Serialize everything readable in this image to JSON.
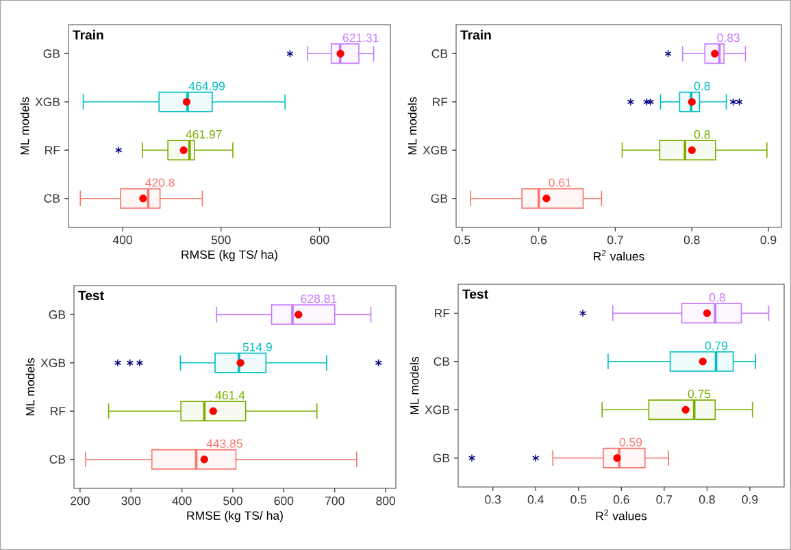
{
  "chart_data": [
    {
      "type": "box",
      "orientation": "horizontal",
      "title": "Train",
      "xlabel": "RMSE (kg TS/ ha)",
      "ylabel": "ML models",
      "categories": [
        "GB",
        "XGB",
        "RF",
        "CB"
      ],
      "colors": [
        "#c77cff",
        "#00bfc4",
        "#7cae00",
        "#f8766d"
      ],
      "boxes": [
        {
          "low": 588,
          "q1": 612,
          "median": 621,
          "q3": 640,
          "high": 655,
          "mean": 621.31,
          "outliers": [
            570
          ]
        },
        {
          "low": 360,
          "q1": 437,
          "median": 466,
          "q3": 491,
          "high": 565,
          "mean": 464.99
        },
        {
          "low": 420,
          "q1": 446,
          "median": 468,
          "q3": 473,
          "high": 512,
          "mean": 461.97,
          "outliers": [
            396
          ]
        },
        {
          "low": 357,
          "q1": 398,
          "median": 426,
          "q3": 438,
          "high": 481,
          "mean": 420.8
        }
      ],
      "annotations": [
        "621.31",
        "464.99",
        "461.97",
        "420.8"
      ],
      "xlim": [
        345,
        672
      ],
      "xticks": [
        400,
        500,
        600
      ]
    },
    {
      "type": "box",
      "orientation": "horizontal",
      "title": "Train",
      "xlabel": "R$^{2}$ values",
      "ylabel": "ML models",
      "categories": [
        "CB",
        "RF",
        "XGB",
        "GB"
      ],
      "colors": [
        "#c77cff",
        "#00bfc4",
        "#7cae00",
        "#f8766d"
      ],
      "boxes": [
        {
          "low": 0.788,
          "q1": 0.817,
          "median": 0.836,
          "q3": 0.842,
          "high": 0.87,
          "mean": 0.83,
          "outliers": [
            0.769
          ]
        },
        {
          "low": 0.759,
          "q1": 0.784,
          "median": 0.799,
          "q3": 0.81,
          "high": 0.845,
          "mean": 0.8,
          "outliers": [
            0.72,
            0.741,
            0.746,
            0.854,
            0.862
          ]
        },
        {
          "low": 0.709,
          "q1": 0.758,
          "median": 0.791,
          "q3": 0.831,
          "high": 0.898,
          "mean": 0.8
        },
        {
          "low": 0.511,
          "q1": 0.578,
          "median": 0.6,
          "q3": 0.658,
          "high": 0.682,
          "mean": 0.61
        }
      ],
      "annotations": [
        "0.83",
        "0.8",
        "0.8",
        "0.61"
      ],
      "xlim": [
        0.492,
        0.917
      ],
      "xticks": [
        0.5,
        0.6,
        0.7,
        0.8,
        0.9
      ]
    },
    {
      "type": "box",
      "orientation": "horizontal",
      "title": "Test",
      "xlabel": "RMSE (kg TS/ ha)",
      "ylabel": "ML models",
      "categories": [
        "GB",
        "XGB",
        "RF",
        "CB"
      ],
      "colors": [
        "#c77cff",
        "#00bfc4",
        "#7cae00",
        "#f8766d"
      ],
      "boxes": [
        {
          "low": 468,
          "q1": 576,
          "median": 617,
          "q3": 700,
          "high": 771,
          "mean": 628.81
        },
        {
          "low": 397,
          "q1": 465,
          "median": 512,
          "q3": 565,
          "high": 684,
          "mean": 514.9,
          "outliers": [
            274,
            298,
            317,
            786
          ]
        },
        {
          "low": 256,
          "q1": 398,
          "median": 444,
          "q3": 525,
          "high": 665,
          "mean": 461.4
        },
        {
          "low": 211,
          "q1": 341,
          "median": 428,
          "q3": 506,
          "high": 743,
          "mean": 443.85
        }
      ],
      "annotations": [
        "628.81",
        "514.9",
        "461.4",
        "443.85"
      ],
      "xlim": [
        188,
        820
      ],
      "xticks": [
        200,
        300,
        400,
        500,
        600,
        700,
        800
      ]
    },
    {
      "type": "box",
      "orientation": "horizontal",
      "title": "Test",
      "xlabel": "R$^{2}$ values",
      "ylabel": "ML models",
      "categories": [
        "RF",
        "CB",
        "XGB",
        "GB"
      ],
      "colors": [
        "#c77cff",
        "#00bfc4",
        "#7cae00",
        "#f8766d"
      ],
      "boxes": [
        {
          "low": 0.58,
          "q1": 0.741,
          "median": 0.819,
          "q3": 0.88,
          "high": 0.944,
          "mean": 0.8,
          "outliers": [
            0.51
          ]
        },
        {
          "low": 0.569,
          "q1": 0.714,
          "median": 0.821,
          "q3": 0.861,
          "high": 0.913,
          "mean": 0.79
        },
        {
          "low": 0.555,
          "q1": 0.664,
          "median": 0.77,
          "q3": 0.819,
          "high": 0.906,
          "mean": 0.75
        },
        {
          "low": 0.44,
          "q1": 0.558,
          "median": 0.595,
          "q3": 0.655,
          "high": 0.71,
          "mean": 0.59,
          "outliers": [
            0.251,
            0.4
          ]
        }
      ],
      "annotations": [
        "0.8",
        "0.79",
        "0.75",
        "0.59"
      ],
      "xlim": [
        0.219,
        0.98
      ],
      "xticks": [
        0.3,
        0.4,
        0.5,
        0.6,
        0.7,
        0.8,
        0.9
      ]
    }
  ]
}
